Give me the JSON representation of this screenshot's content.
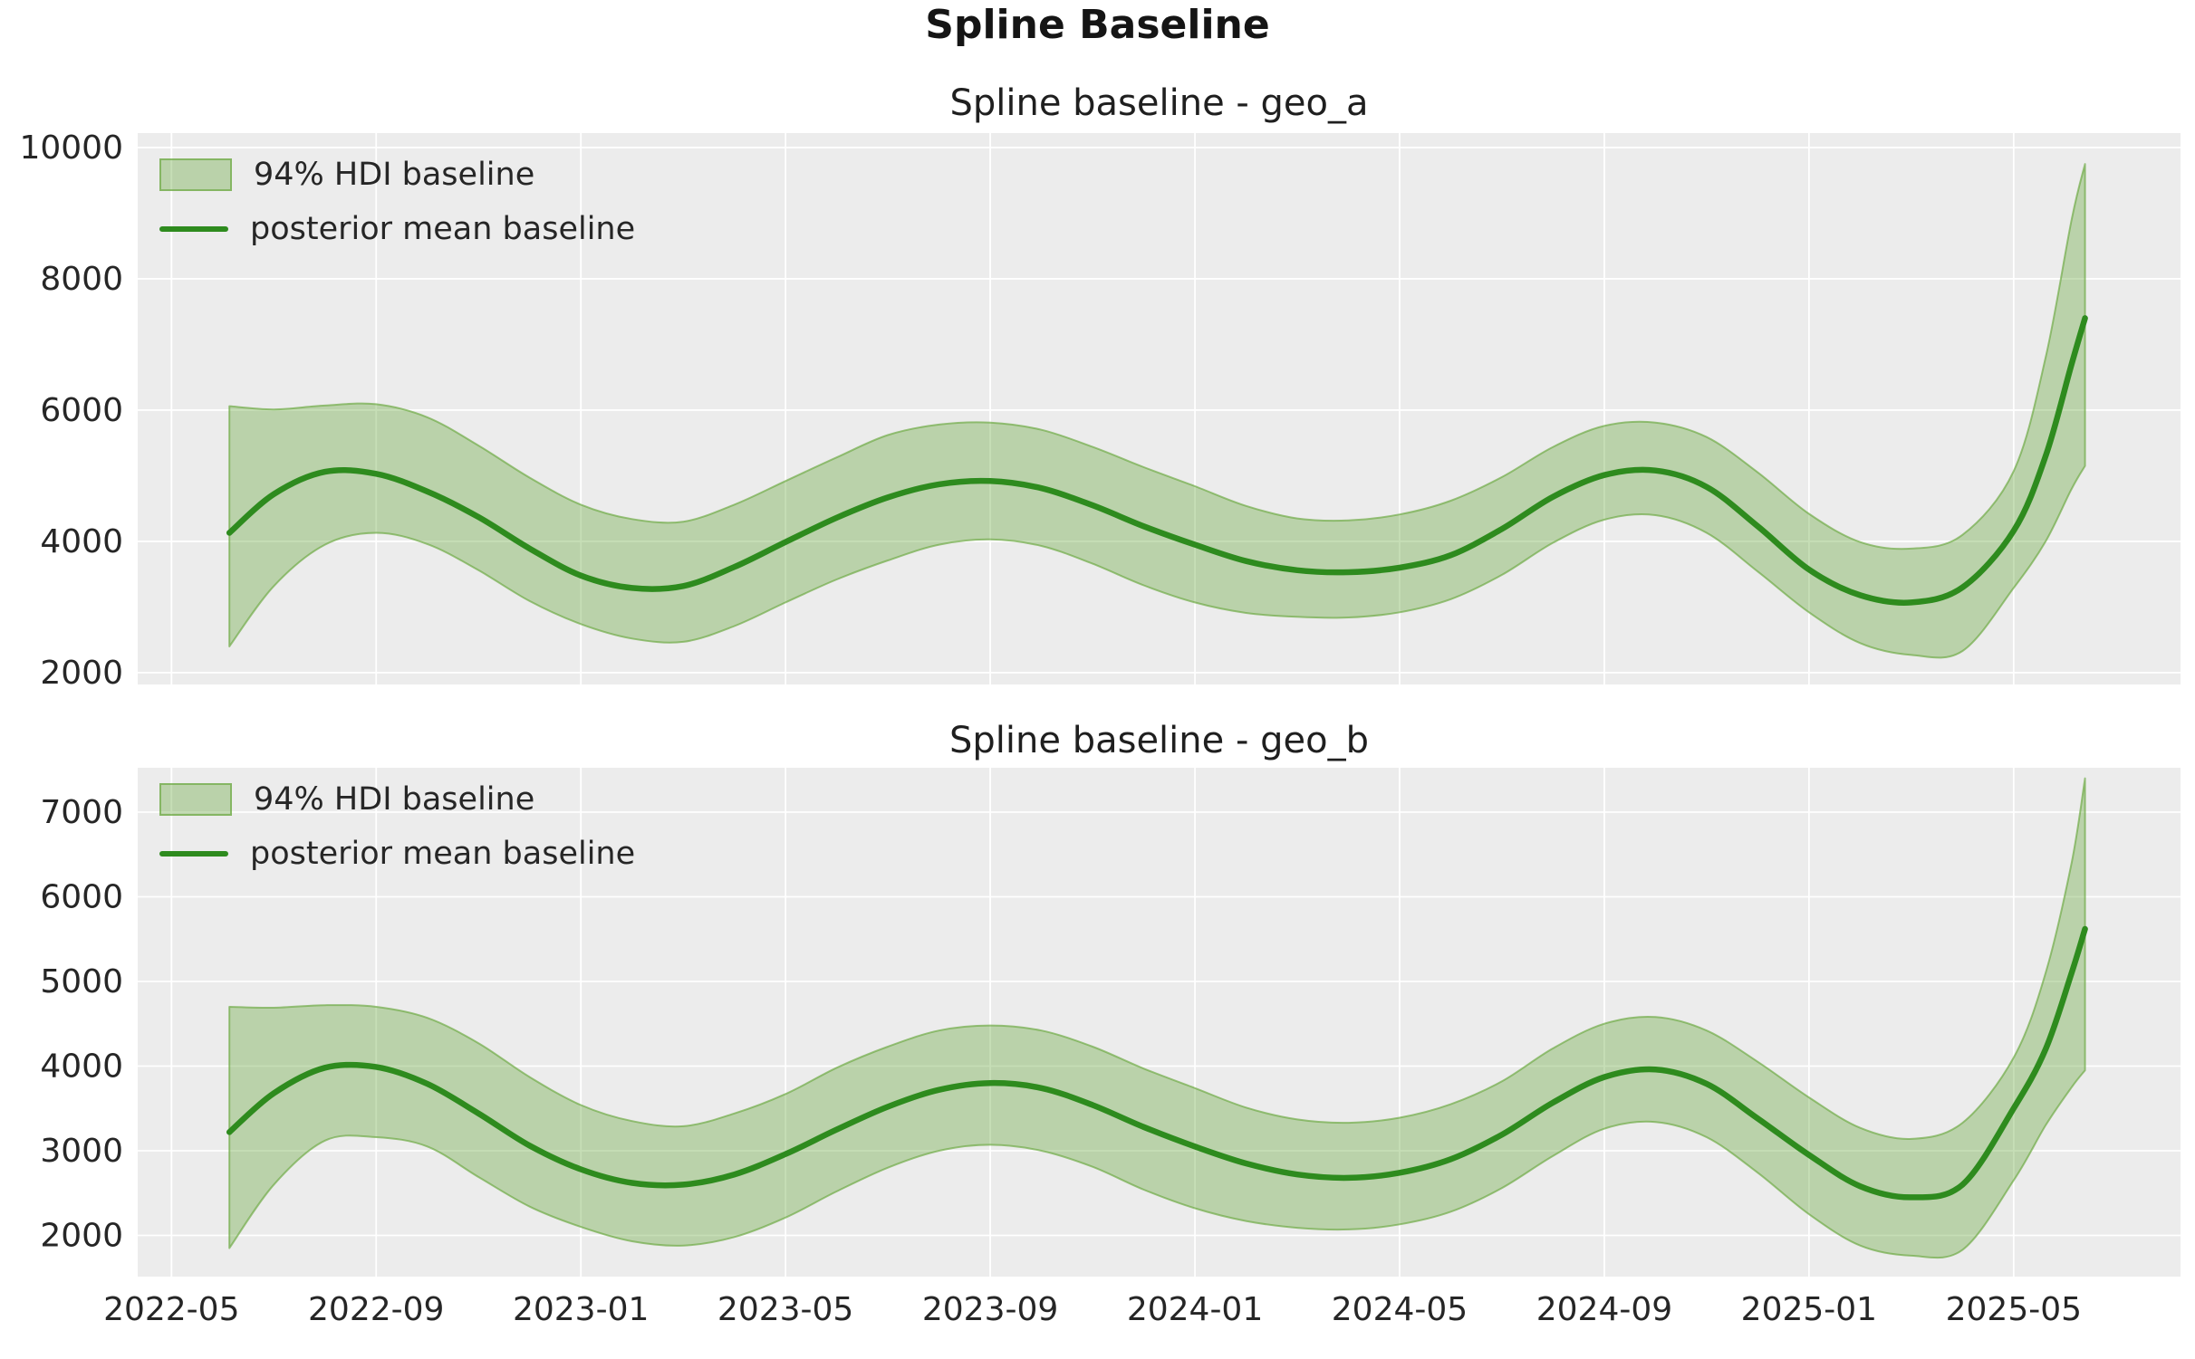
{
  "figure": {
    "title": "Spline Baseline",
    "colors": {
      "figure_bg": "#ffffff",
      "axes_bg": "#ececec",
      "grid": "#ffffff",
      "mean_line": "#2e8b1e",
      "band_fill": "rgba(104,168,62,0.38)",
      "band_edge": "rgba(104,168,62,0.65)",
      "tick_text": "#262626",
      "title_text": "#151515"
    },
    "legend": {
      "hdi_label": "94% HDI baseline",
      "mean_label": "posterior mean baseline"
    }
  },
  "chart_data": [
    {
      "type": "area",
      "title": "Spline baseline - geo_a",
      "geo": "geo_a",
      "xlabel": "",
      "ylabel": "",
      "grid": true,
      "legend_position": "upper left",
      "x_tick_labels": [
        "2022-05",
        "2022-09",
        "2023-01",
        "2023-05",
        "2023-09",
        "2024-01",
        "2024-05",
        "2024-09",
        "2025-01",
        "2025-05"
      ],
      "x_tick_month_offsets": [
        0,
        4,
        8,
        12,
        16,
        20,
        24,
        28,
        32,
        36
      ],
      "xlim_months": [
        -0.66,
        39.26
      ],
      "ylim": [
        1820,
        10220
      ],
      "yticks": [
        2000,
        4000,
        6000,
        8000,
        10000
      ],
      "series": {
        "dates": [
          "2022-06-05",
          "2022-07-01",
          "2022-08-01",
          "2022-09-01",
          "2022-10-01",
          "2022-11-01",
          "2022-12-01",
          "2023-01-01",
          "2023-02-01",
          "2023-03-01",
          "2023-04-01",
          "2023-05-01",
          "2023-06-01",
          "2023-07-01",
          "2023-08-01",
          "2023-09-01",
          "2023-10-01",
          "2023-11-01",
          "2023-12-01",
          "2024-01-01",
          "2024-02-01",
          "2024-03-01",
          "2024-04-01",
          "2024-05-01",
          "2024-06-01",
          "2024-07-01",
          "2024-08-01",
          "2024-09-01",
          "2024-10-01",
          "2024-11-01",
          "2024-12-01",
          "2025-01-01",
          "2025-02-01",
          "2025-03-01",
          "2025-04-01",
          "2025-05-01",
          "2025-05-20",
          "2025-06-05",
          "2025-06-13"
        ],
        "posterior_mean": [
          4130,
          4720,
          5060,
          5030,
          4760,
          4370,
          3890,
          3480,
          3290,
          3320,
          3610,
          3990,
          4360,
          4670,
          4870,
          4920,
          4810,
          4550,
          4230,
          3950,
          3700,
          3560,
          3530,
          3600,
          3790,
          4190,
          4680,
          5010,
          5080,
          4830,
          4230,
          3570,
          3180,
          3070,
          3300,
          4160,
          5300,
          6700,
          7400
        ],
        "hdi_lower": [
          2400,
          3320,
          3950,
          4130,
          3960,
          3560,
          3090,
          2740,
          2520,
          2470,
          2710,
          3070,
          3420,
          3710,
          3950,
          4030,
          3930,
          3660,
          3330,
          3070,
          2910,
          2850,
          2840,
          2920,
          3120,
          3490,
          3980,
          4330,
          4400,
          4130,
          3540,
          2920,
          2450,
          2270,
          2330,
          3290,
          4000,
          4800,
          5150
        ],
        "hdi_upper": [
          6060,
          6010,
          6070,
          6090,
          5890,
          5460,
          4970,
          4560,
          4340,
          4300,
          4560,
          4920,
          5280,
          5620,
          5780,
          5810,
          5700,
          5440,
          5130,
          4840,
          4540,
          4350,
          4320,
          4410,
          4620,
          4980,
          5440,
          5760,
          5810,
          5590,
          5050,
          4420,
          3990,
          3890,
          4100,
          5070,
          6800,
          8900,
          9750
        ]
      }
    },
    {
      "type": "area",
      "title": "Spline baseline - geo_b",
      "geo": "geo_b",
      "xlabel": "",
      "ylabel": "",
      "grid": true,
      "legend_position": "upper left",
      "x_tick_labels": [
        "2022-05",
        "2022-09",
        "2023-01",
        "2023-05",
        "2023-09",
        "2024-01",
        "2024-05",
        "2024-09",
        "2025-01",
        "2025-05"
      ],
      "x_tick_month_offsets": [
        0,
        4,
        8,
        12,
        16,
        20,
        24,
        28,
        32,
        36
      ],
      "xlim_months": [
        -0.66,
        39.26
      ],
      "ylim": [
        1513,
        7524
      ],
      "yticks": [
        2000,
        3000,
        4000,
        5000,
        6000,
        7000
      ],
      "series": {
        "dates": [
          "2022-06-05",
          "2022-07-01",
          "2022-08-01",
          "2022-09-01",
          "2022-10-01",
          "2022-11-01",
          "2022-12-01",
          "2023-01-01",
          "2023-02-01",
          "2023-03-01",
          "2023-04-01",
          "2023-05-01",
          "2023-06-01",
          "2023-07-01",
          "2023-08-01",
          "2023-09-01",
          "2023-10-01",
          "2023-11-01",
          "2023-12-01",
          "2024-01-01",
          "2024-02-01",
          "2024-03-01",
          "2024-04-01",
          "2024-05-01",
          "2024-06-01",
          "2024-07-01",
          "2024-08-01",
          "2024-09-01",
          "2024-10-01",
          "2024-11-01",
          "2024-12-01",
          "2025-01-01",
          "2025-02-01",
          "2025-03-01",
          "2025-04-01",
          "2025-05-01",
          "2025-05-20",
          "2025-06-05",
          "2025-06-13"
        ],
        "posterior_mean": [
          3220,
          3680,
          3980,
          3990,
          3790,
          3440,
          3060,
          2780,
          2620,
          2600,
          2720,
          2960,
          3250,
          3520,
          3720,
          3800,
          3740,
          3540,
          3280,
          3050,
          2850,
          2720,
          2680,
          2740,
          2900,
          3190,
          3570,
          3870,
          3960,
          3790,
          3380,
          2950,
          2580,
          2450,
          2600,
          3500,
          4200,
          5100,
          5620
        ],
        "hdi_lower": [
          1850,
          2600,
          3120,
          3160,
          3050,
          2690,
          2340,
          2100,
          1930,
          1880,
          1980,
          2210,
          2520,
          2800,
          3000,
          3070,
          3000,
          2810,
          2540,
          2320,
          2170,
          2090,
          2070,
          2130,
          2280,
          2560,
          2940,
          3260,
          3340,
          3160,
          2740,
          2250,
          1880,
          1760,
          1830,
          2650,
          3300,
          3750,
          3950
        ],
        "hdi_upper": [
          4700,
          4690,
          4720,
          4700,
          4570,
          4270,
          3870,
          3540,
          3350,
          3290,
          3440,
          3670,
          3980,
          4230,
          4420,
          4480,
          4420,
          4230,
          3970,
          3740,
          3510,
          3370,
          3330,
          3390,
          3550,
          3820,
          4210,
          4500,
          4580,
          4420,
          4050,
          3630,
          3270,
          3140,
          3330,
          4100,
          5100,
          6400,
          7400
        ]
      }
    }
  ]
}
